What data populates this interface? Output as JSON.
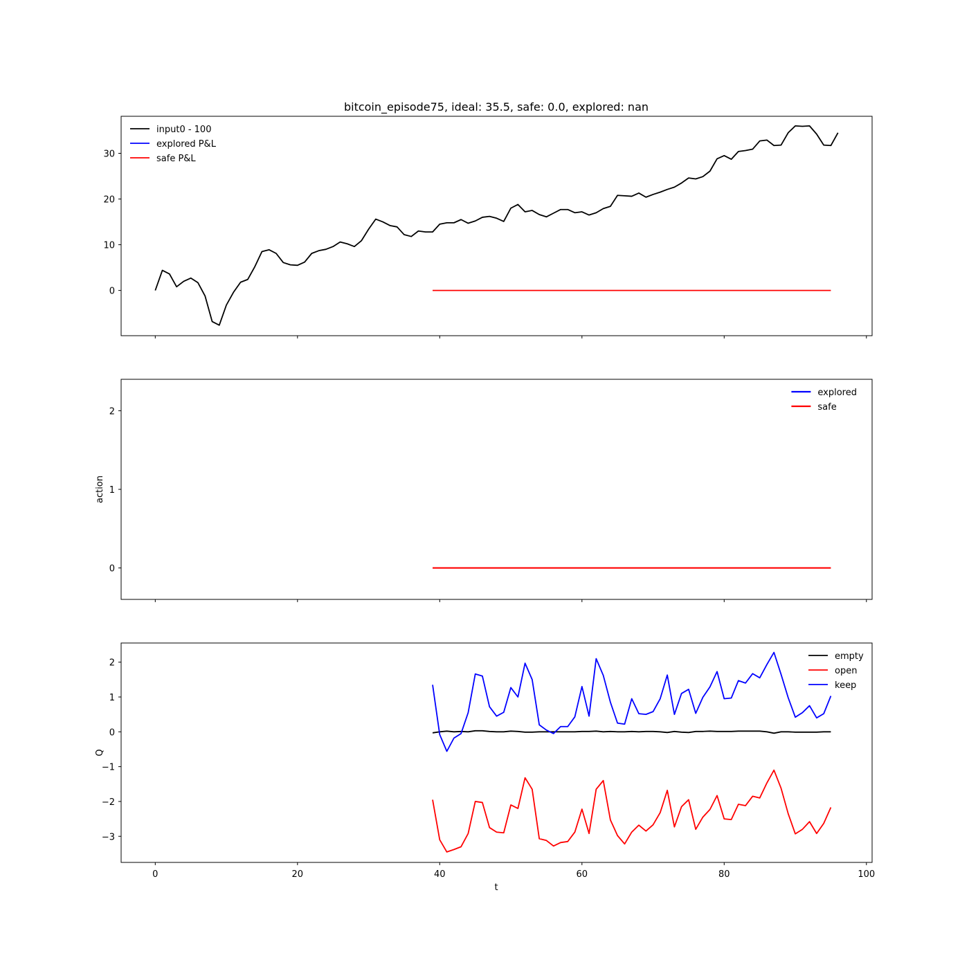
{
  "figure": {
    "title": "bitcoin_episode75, ideal: 35.5, safe: 0.0, explored: nan",
    "xlabel": "t"
  },
  "chart_data": [
    {
      "type": "line",
      "title": "bitcoin_episode75, ideal: 35.5, safe: 0.0, explored: nan",
      "xlabel": "",
      "ylabel": "",
      "xlim": [
        -4.8,
        100.8
      ],
      "ylim": [
        -9.9,
        38.1
      ],
      "xticks": [
        0,
        20,
        40,
        60,
        80,
        100
      ],
      "xticklabels_visible": false,
      "yticks": [
        0,
        10,
        20,
        30
      ],
      "grid": false,
      "legend": "top-left",
      "series": [
        {
          "name": "input0 - 100",
          "color": "#000000",
          "x": [
            0,
            1,
            2,
            3,
            4,
            5,
            6,
            7,
            8,
            9,
            10,
            11,
            12,
            13,
            14,
            15,
            16,
            17,
            18,
            19,
            20,
            21,
            22,
            23,
            24,
            25,
            26,
            27,
            28,
            29,
            30,
            31,
            32,
            33,
            34,
            35,
            36,
            37,
            38,
            39,
            40,
            41,
            42,
            43,
            44,
            45,
            46,
            47,
            48,
            49,
            50,
            51,
            52,
            53,
            54,
            55,
            56,
            57,
            58,
            59,
            60,
            61,
            62,
            63,
            64,
            65,
            66,
            67,
            68,
            69,
            70,
            71,
            72,
            73,
            74,
            75,
            76,
            77,
            78,
            79,
            80,
            81,
            82,
            83,
            84,
            85,
            86,
            87,
            88,
            89,
            90,
            91,
            92,
            93,
            94,
            95,
            96
          ],
          "values": [
            0.0,
            4.4,
            3.6,
            0.8,
            2.0,
            2.7,
            1.7,
            -1.2,
            -6.8,
            -7.6,
            -3.2,
            -0.4,
            1.8,
            2.4,
            5.2,
            8.5,
            8.9,
            8.1,
            6.1,
            5.6,
            5.5,
            6.2,
            8.1,
            8.7,
            9.0,
            9.6,
            10.6,
            10.2,
            9.6,
            10.9,
            13.4,
            15.6,
            15.0,
            14.2,
            13.9,
            12.2,
            11.8,
            13.0,
            12.8,
            12.8,
            14.5,
            14.8,
            14.8,
            15.5,
            14.7,
            15.2,
            16.0,
            16.2,
            15.8,
            15.1,
            18.0,
            18.8,
            17.2,
            17.5,
            16.6,
            16.1,
            16.9,
            17.7,
            17.7,
            17.0,
            17.2,
            16.5,
            17.0,
            17.9,
            18.4,
            20.8,
            20.7,
            20.6,
            21.3,
            20.4,
            21.0,
            21.5,
            22.1,
            22.6,
            23.5,
            24.6,
            24.4,
            24.9,
            26.1,
            28.8,
            29.5,
            28.7,
            30.4,
            30.6,
            30.9,
            32.7,
            32.9,
            31.7,
            31.8,
            34.5,
            36.0,
            35.9,
            36.0,
            34.2,
            31.8,
            31.7,
            34.5
          ]
        },
        {
          "name": "explored P&L",
          "color": "#0000ff",
          "x": [],
          "values": []
        },
        {
          "name": "safe P&L",
          "color": "#ff0000",
          "x": [
            39,
            40,
            41,
            42,
            43,
            44,
            45,
            46,
            47,
            48,
            49,
            50,
            51,
            52,
            53,
            54,
            55,
            56,
            57,
            58,
            59,
            60,
            61,
            62,
            63,
            64,
            65,
            66,
            67,
            68,
            69,
            70,
            71,
            72,
            73,
            74,
            75,
            76,
            77,
            78,
            79,
            80,
            81,
            82,
            83,
            84,
            85,
            86,
            87,
            88,
            89,
            90,
            91,
            92,
            93,
            94,
            95
          ],
          "values": [
            0,
            0,
            0,
            0,
            0,
            0,
            0,
            0,
            0,
            0,
            0,
            0,
            0,
            0,
            0,
            0,
            0,
            0,
            0,
            0,
            0,
            0,
            0,
            0,
            0,
            0,
            0,
            0,
            0,
            0,
            0,
            0,
            0,
            0,
            0,
            0,
            0,
            0,
            0,
            0,
            0,
            0,
            0,
            0,
            0,
            0,
            0,
            0,
            0,
            0,
            0,
            0,
            0,
            0,
            0,
            0,
            0
          ]
        }
      ]
    },
    {
      "type": "line",
      "title": "",
      "xlabel": "",
      "ylabel": "action",
      "xlim": [
        -4.8,
        100.8
      ],
      "ylim": [
        -0.4,
        2.4
      ],
      "xticks": [
        0,
        20,
        40,
        60,
        80,
        100
      ],
      "xticklabels_visible": false,
      "yticks": [
        0,
        1,
        2
      ],
      "grid": false,
      "legend": "top-right",
      "series": [
        {
          "name": "explored",
          "color": "#0000ff",
          "x": [],
          "values": []
        },
        {
          "name": "safe",
          "color": "#ff0000",
          "x": [
            39,
            40,
            41,
            42,
            43,
            44,
            45,
            46,
            47,
            48,
            49,
            50,
            51,
            52,
            53,
            54,
            55,
            56,
            57,
            58,
            59,
            60,
            61,
            62,
            63,
            64,
            65,
            66,
            67,
            68,
            69,
            70,
            71,
            72,
            73,
            74,
            75,
            76,
            77,
            78,
            79,
            80,
            81,
            82,
            83,
            84,
            85,
            86,
            87,
            88,
            89,
            90,
            91,
            92,
            93,
            94,
            95
          ],
          "values": [
            0,
            0,
            0,
            0,
            0,
            0,
            0,
            0,
            0,
            0,
            0,
            0,
            0,
            0,
            0,
            0,
            0,
            0,
            0,
            0,
            0,
            0,
            0,
            0,
            0,
            0,
            0,
            0,
            0,
            0,
            0,
            0,
            0,
            0,
            0,
            0,
            0,
            0,
            0,
            0,
            0,
            0,
            0,
            0,
            0,
            0,
            0,
            0,
            0,
            0,
            0,
            0,
            0,
            0,
            0,
            0,
            0
          ]
        }
      ]
    },
    {
      "type": "line",
      "title": "",
      "xlabel": "t",
      "ylabel": "Q",
      "xlim": [
        -4.8,
        100.8
      ],
      "ylim": [
        -3.75,
        2.55
      ],
      "xticks": [
        0,
        20,
        40,
        60,
        80,
        100
      ],
      "xticklabels_visible": true,
      "yticks": [
        -3,
        -2,
        -1,
        0,
        1,
        2
      ],
      "grid": false,
      "legend": "top-right",
      "series": [
        {
          "name": "empty",
          "color": "#000000",
          "x": [
            39,
            40,
            41,
            42,
            43,
            44,
            45,
            46,
            47,
            48,
            49,
            50,
            51,
            52,
            53,
            54,
            55,
            56,
            57,
            58,
            59,
            60,
            61,
            62,
            63,
            64,
            65,
            66,
            67,
            68,
            69,
            70,
            71,
            72,
            73,
            74,
            75,
            76,
            77,
            78,
            79,
            80,
            81,
            82,
            83,
            84,
            85,
            86,
            87,
            88,
            89,
            90,
            91,
            92,
            93,
            94,
            95
          ],
          "values": [
            -0.03,
            0.0,
            0.02,
            0.0,
            0.01,
            0.0,
            0.03,
            0.03,
            0.01,
            0.0,
            0.0,
            0.02,
            0.01,
            -0.01,
            -0.01,
            0.0,
            0.0,
            0.0,
            0.0,
            0.0,
            0.0,
            0.01,
            0.01,
            0.02,
            0.0,
            0.01,
            0.0,
            0.0,
            0.01,
            0.0,
            0.01,
            0.01,
            0.0,
            -0.02,
            0.01,
            -0.01,
            -0.02,
            0.01,
            0.01,
            0.02,
            0.01,
            0.01,
            0.01,
            0.02,
            0.02,
            0.02,
            0.02,
            0.0,
            -0.04,
            0.0,
            0.0,
            -0.01,
            -0.01,
            -0.01,
            -0.01,
            0.0,
            0.0
          ]
        },
        {
          "name": "open",
          "color": "#ff0000",
          "x": [
            39,
            40,
            41,
            42,
            43,
            44,
            45,
            46,
            47,
            48,
            49,
            50,
            51,
            52,
            53,
            54,
            55,
            56,
            57,
            58,
            59,
            60,
            61,
            62,
            63,
            64,
            65,
            66,
            67,
            68,
            69,
            70,
            71,
            72,
            73,
            74,
            75,
            76,
            77,
            78,
            79,
            80,
            81,
            82,
            83,
            84,
            85,
            86,
            87,
            88,
            89,
            90,
            91,
            92,
            93,
            94,
            95
          ],
          "values": [
            -1.95,
            -3.1,
            -3.45,
            -3.38,
            -3.3,
            -2.92,
            -2.0,
            -2.03,
            -2.75,
            -2.88,
            -2.9,
            -2.1,
            -2.2,
            -1.32,
            -1.65,
            -3.07,
            -3.12,
            -3.28,
            -3.18,
            -3.15,
            -2.88,
            -2.22,
            -2.92,
            -1.65,
            -1.4,
            -2.53,
            -2.98,
            -3.22,
            -2.88,
            -2.68,
            -2.85,
            -2.67,
            -2.32,
            -1.68,
            -2.73,
            -2.15,
            -1.95,
            -2.8,
            -2.45,
            -2.23,
            -1.83,
            -2.5,
            -2.52,
            -2.08,
            -2.12,
            -1.85,
            -1.9,
            -1.47,
            -1.1,
            -1.62,
            -2.35,
            -2.93,
            -2.8,
            -2.58,
            -2.92,
            -2.63,
            -2.17
          ]
        },
        {
          "name": "keep",
          "color": "#0000ff",
          "x": [
            39,
            40,
            41,
            42,
            43,
            44,
            45,
            46,
            47,
            48,
            49,
            50,
            51,
            52,
            53,
            54,
            55,
            56,
            57,
            58,
            59,
            60,
            61,
            62,
            63,
            64,
            65,
            66,
            67,
            68,
            69,
            70,
            71,
            72,
            73,
            74,
            75,
            76,
            77,
            78,
            79,
            80,
            81,
            82,
            83,
            84,
            85,
            86,
            87,
            88,
            89,
            90,
            91,
            92,
            93,
            94,
            95
          ],
          "values": [
            1.35,
            -0.08,
            -0.56,
            -0.18,
            -0.05,
            0.55,
            1.66,
            1.6,
            0.72,
            0.45,
            0.56,
            1.27,
            1.0,
            1.97,
            1.5,
            0.2,
            0.05,
            -0.05,
            0.15,
            0.15,
            0.43,
            1.3,
            0.45,
            2.1,
            1.62,
            0.85,
            0.25,
            0.22,
            0.95,
            0.52,
            0.5,
            0.58,
            0.95,
            1.63,
            0.5,
            1.1,
            1.22,
            0.53,
            0.99,
            1.29,
            1.73,
            0.95,
            0.97,
            1.47,
            1.4,
            1.67,
            1.55,
            1.93,
            2.28,
            1.65,
            0.98,
            0.42,
            0.55,
            0.75,
            0.4,
            0.52,
            1.03
          ]
        }
      ]
    }
  ]
}
